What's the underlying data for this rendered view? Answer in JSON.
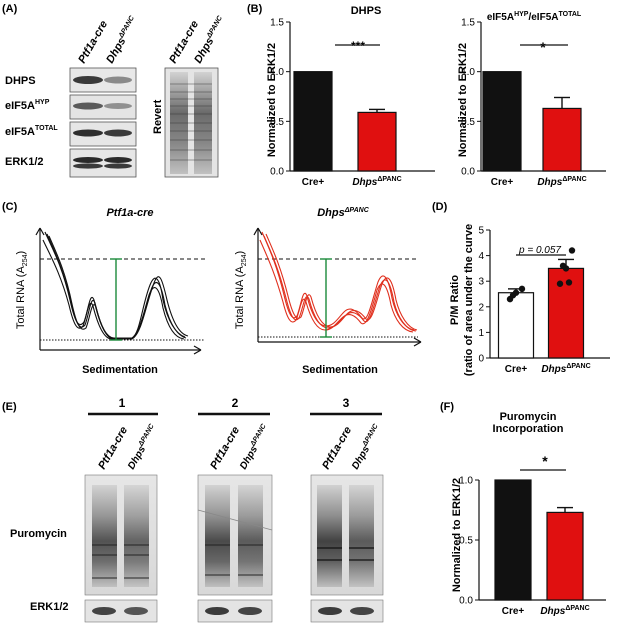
{
  "panelA": {
    "label": "(A)",
    "lane_headers": [
      "Ptf1a-cre",
      "Dhps"
    ],
    "lane_header_sup": "ΔPANC",
    "revert_headers": [
      "Ptf1a-cre",
      "Dhps"
    ],
    "rows": [
      {
        "label": "DHPS",
        "sup": ""
      },
      {
        "label": "eIF5A",
        "sup": "HYP"
      },
      {
        "label": "eIF5A",
        "sup": "TOTAL"
      },
      {
        "label": "ERK1/2",
        "sup": ""
      }
    ],
    "revert_label": "Revert"
  },
  "panelB": {
    "label": "(B)",
    "charts": [
      {
        "title": "DHPS",
        "title_sup": "",
        "ylabel": "Normalized to ERK1/2",
        "sig": "***"
      },
      {
        "title": "eIF5A",
        "title_sup": "HYP",
        "title_rest": "/eIF5A",
        "title_sup2": "TOTAL",
        "ylabel": "Normalized to ERK1/2",
        "sig": "*"
      }
    ]
  },
  "panelC": {
    "label": "(C)",
    "plots": [
      {
        "title": "Ptf1a-cre",
        "title_sup": "",
        "ylabel": "Total RNA (A",
        "ylabel_sub": "254",
        "xlabel": "Sedimentation",
        "color": "#111111"
      },
      {
        "title": "Dhps",
        "title_sup": "ΔPANC",
        "ylabel": "Total RNA (A",
        "ylabel_sub": "254",
        "xlabel": "Sedimentation",
        "color": "#e0301e"
      }
    ]
  },
  "panelD": {
    "label": "(D)",
    "ylabel1": "P/M Ratio",
    "ylabel2": "(ratio of area under the curve",
    "pvalue": "p = 0.057"
  },
  "panelE": {
    "label": "(E)",
    "groups": [
      "1",
      "2",
      "3"
    ],
    "lane_headers": [
      "Ptf1a-cre",
      "Dhps"
    ],
    "lane_header_sup": "ΔPANC",
    "row_labels": [
      "Puromycin",
      "ERK1/2"
    ]
  },
  "panelF": {
    "label": "(F)",
    "title_line1": "Puromycin",
    "title_line2": "Incorporation",
    "ylabel": "Normalized to ERK1/2",
    "sig": "*"
  },
  "chart_data": [
    {
      "type": "bar",
      "title": "DHPS",
      "ylabel": "Normalized to ERK1/2",
      "categories": [
        "Cre+",
        "Dhps ΔPANC"
      ],
      "values": [
        1.0,
        0.59
      ],
      "errors": [
        0.0,
        0.03
      ],
      "colors": [
        "#111111",
        "#e01010"
      ],
      "ylim": [
        0,
        1.5
      ],
      "yticks": [
        "0.0",
        "0.5",
        "1.0",
        "1.5"
      ],
      "significance": "***"
    },
    {
      "type": "bar",
      "title": "eIF5A HYP / eIF5A TOTAL",
      "ylabel": "Normalized to ERK1/2",
      "categories": [
        "Cre+",
        "Dhps ΔPANC"
      ],
      "values": [
        1.0,
        0.63
      ],
      "errors": [
        0.0,
        0.11
      ],
      "colors": [
        "#111111",
        "#e01010"
      ],
      "ylim": [
        0,
        1.5
      ],
      "yticks": [
        "0.0",
        "0.5",
        "1.0",
        "1.5"
      ],
      "significance": "*"
    },
    {
      "type": "bar",
      "title": "",
      "ylabel": "P/M Ratio (ratio of area under the curve",
      "categories": [
        "Cre+",
        "Dhps ΔPANC"
      ],
      "values": [
        2.55,
        3.5
      ],
      "errors": [
        0.15,
        0.35
      ],
      "points": [
        [
          2.3,
          2.55,
          2.7,
          2.45
        ],
        [
          2.9,
          3.5,
          4.2,
          3.6,
          2.95
        ]
      ],
      "colors": [
        "#ffffff",
        "#e01010"
      ],
      "ylim": [
        0,
        5
      ],
      "yticks": [
        "0",
        "1",
        "2",
        "3",
        "4",
        "5"
      ],
      "annotation": "p = 0.057"
    },
    {
      "type": "bar",
      "title": "Puromycin Incorporation",
      "ylabel": "Normalized to ERK1/2",
      "categories": [
        "Cre+",
        "Dhps ΔPANC"
      ],
      "values": [
        1.0,
        0.73
      ],
      "errors": [
        0.0,
        0.04
      ],
      "colors": [
        "#111111",
        "#e01010"
      ],
      "ylim": [
        0,
        1.0
      ],
      "yticks": [
        "0.0",
        "0.5",
        "1.0"
      ],
      "significance": "*"
    }
  ]
}
